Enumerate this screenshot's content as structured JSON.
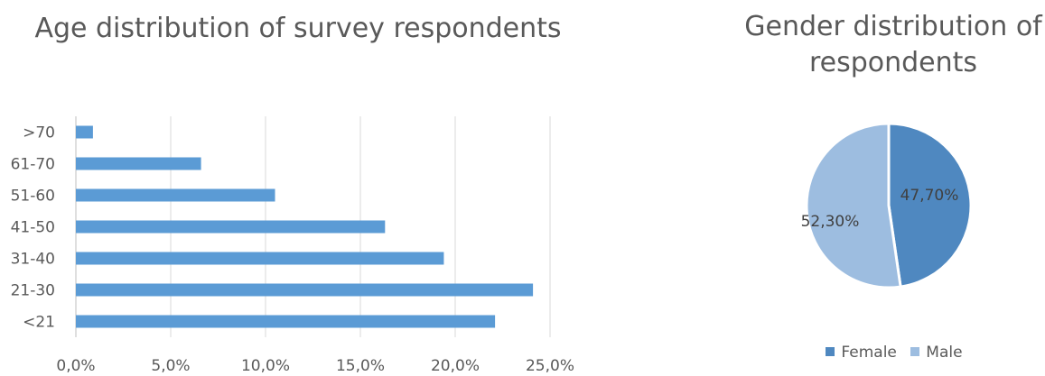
{
  "colors": {
    "bar": "#5b9bd5",
    "female": "#4f88c0",
    "male": "#9dbde0",
    "grid": "#d9d9d9",
    "text": "#595959"
  },
  "chart_data": [
    {
      "type": "bar",
      "orientation": "horizontal",
      "title": "Age distribution of survey respondents",
      "categories": [
        "<21",
        "21-30",
        "31-40",
        "41-50",
        "51-60",
        "61-70",
        ">70"
      ],
      "values": [
        22.1,
        24.1,
        19.4,
        16.3,
        10.5,
        6.6,
        0.9
      ],
      "xlim": [
        0,
        25
      ],
      "xticks": [
        0,
        5,
        10,
        15,
        20,
        25
      ],
      "xtick_labels": [
        "0,0%",
        "5,0%",
        "10,0%",
        "15,0%",
        "20,0%",
        "25,0%"
      ],
      "grid": true
    },
    {
      "type": "pie",
      "title": "Gender distribution of respondents",
      "categories": [
        "Female",
        "Male"
      ],
      "values": [
        47.7,
        52.3
      ],
      "labels": [
        "47,70%",
        "52,30%"
      ],
      "legend": "bottom"
    }
  ]
}
